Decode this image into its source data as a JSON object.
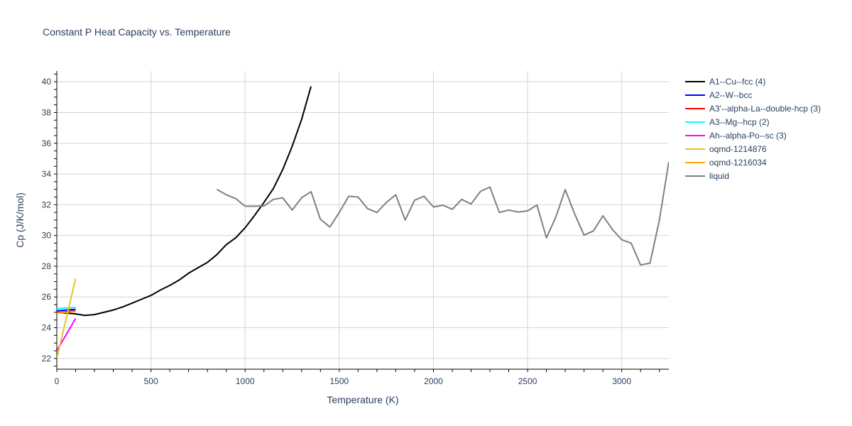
{
  "chart_data": {
    "type": "line",
    "title": "Constant P Heat Capacity vs. Temperature",
    "xlabel": "Temperature (K)",
    "ylabel": "Cp (J/K/mol)",
    "xlim": [
      0,
      3250
    ],
    "ylim": [
      21.3,
      40.7
    ],
    "xticks": [
      0,
      500,
      1000,
      1500,
      2000,
      2500,
      3000
    ],
    "xtick_labels": [
      "0",
      "500",
      "1000",
      "1500",
      "2000",
      "2500",
      "3000"
    ],
    "yticks": [
      22,
      24,
      26,
      28,
      30,
      32,
      34,
      36,
      38,
      40
    ],
    "ytick_labels": [
      "22",
      "24",
      "26",
      "28",
      "30",
      "32",
      "34",
      "36",
      "38",
      "40"
    ],
    "series": [
      {
        "name": "A1--Cu--fcc (4)",
        "color": "#000000",
        "x": [
          0,
          50,
          100,
          150,
          200,
          250,
          300,
          350,
          400,
          450,
          500,
          550,
          600,
          650,
          700,
          750,
          800,
          850,
          900,
          950,
          1000,
          1050,
          1100,
          1150,
          1200,
          1250,
          1300,
          1350
        ],
        "y": [
          25.0,
          24.95,
          24.9,
          24.8,
          24.85,
          25.0,
          25.15,
          25.35,
          25.6,
          25.85,
          26.1,
          26.45,
          26.75,
          27.1,
          27.55,
          27.9,
          28.25,
          28.75,
          29.4,
          29.85,
          30.5,
          31.3,
          32.15,
          33.05,
          34.3,
          35.8,
          37.55,
          39.7
        ]
      },
      {
        "name": "A2--W--bcc",
        "color": "#0000ff",
        "x": [
          0,
          100
        ],
        "y": [
          25.1,
          25.2
        ]
      },
      {
        "name": "A3'--alpha-La--double-hcp (3)",
        "color": "#ff0000",
        "x": [
          0,
          100
        ],
        "y": [
          24.98,
          25.1
        ]
      },
      {
        "name": "A3--Mg--hcp (2)",
        "color": "#00ffff",
        "x": [
          0,
          100
        ],
        "y": [
          25.25,
          25.32
        ]
      },
      {
        "name": "Ah--alpha-Po--sc (3)",
        "color": "#ff00ff",
        "x": [
          0,
          100
        ],
        "y": [
          22.5,
          24.6
        ]
      },
      {
        "name": "oqmd-1214876",
        "color": "#e6c229",
        "x": [
          0,
          100
        ],
        "y": [
          22.0,
          27.2
        ]
      },
      {
        "name": "oqmd-1216034",
        "color": "#ffa500",
        "x": [
          0,
          100
        ],
        "y": [
          24.95,
          25.05
        ]
      },
      {
        "name": "liquid",
        "color": "#808080",
        "x": [
          850,
          900,
          950,
          1000,
          1050,
          1100,
          1150,
          1200,
          1250,
          1300,
          1350,
          1400,
          1450,
          1500,
          1550,
          1600,
          1650,
          1700,
          1750,
          1800,
          1850,
          1900,
          1950,
          2000,
          2050,
          2100,
          2150,
          2200,
          2250,
          2300,
          2350,
          2400,
          2450,
          2500,
          2550,
          2600,
          2650,
          2700,
          2750,
          2800,
          2850,
          2900,
          2950,
          3000,
          3050,
          3100,
          3150,
          3200,
          3250
        ],
        "y": [
          33.0,
          32.65,
          32.4,
          31.9,
          31.9,
          31.92,
          32.35,
          32.45,
          31.65,
          32.45,
          32.85,
          31.05,
          30.55,
          31.5,
          32.55,
          32.5,
          31.75,
          31.5,
          32.15,
          32.65,
          31.0,
          32.3,
          32.55,
          31.85,
          31.97,
          31.7,
          32.35,
          32.05,
          32.87,
          33.15,
          31.5,
          31.65,
          31.52,
          31.6,
          31.98,
          29.85,
          31.2,
          32.98,
          31.4,
          30.02,
          30.3,
          31.28,
          30.4,
          29.72,
          29.5,
          28.08,
          28.2,
          31.0,
          34.8
        ]
      }
    ]
  }
}
